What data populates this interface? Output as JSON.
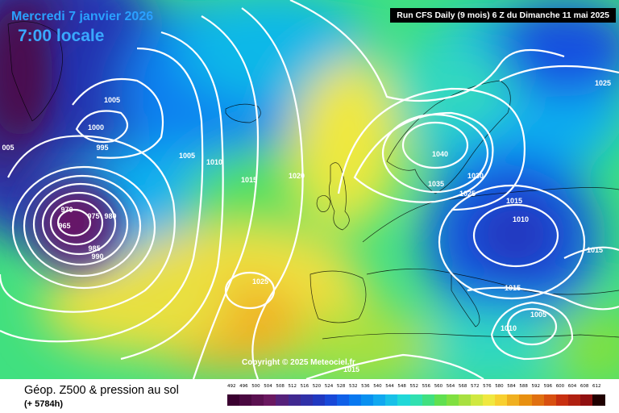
{
  "header": {
    "date_line": "Mercredi 7 janvier 2026",
    "local_time": "7:00 locale",
    "run_info": "Run CFS Daily (9 mois) 6 Z du Dimanche 11 mai 2025"
  },
  "footer": {
    "product": "Géop. Z500 & pression au sol",
    "lead_time": "(+ 5784h)",
    "copyright": "Copyright © 2025 Meteociel.fr"
  },
  "legend": {
    "ticks": [
      "492",
      "496",
      "500",
      "504",
      "508",
      "512",
      "516",
      "520",
      "524",
      "528",
      "532",
      "536",
      "540",
      "544",
      "548",
      "552",
      "556",
      "560",
      "564",
      "568",
      "572",
      "576",
      "580",
      "584",
      "588",
      "592",
      "596",
      "600",
      "604",
      "608",
      "612"
    ],
    "colors": [
      "#3a0030",
      "#4a0840",
      "#5a1050",
      "#6a1860",
      "#55207a",
      "#402890",
      "#3030a8",
      "#2038c0",
      "#1848d8",
      "#1060e8",
      "#0878f0",
      "#0890f0",
      "#10a8f0",
      "#18c0e8",
      "#20d8d8",
      "#30e0b0",
      "#40e080",
      "#60e050",
      "#80e040",
      "#a8e040",
      "#d0e840",
      "#f0e840",
      "#f8d030",
      "#f0b020",
      "#e89010",
      "#e07010",
      "#d85010",
      "#c83010",
      "#b02010",
      "#901010",
      "#200000"
    ]
  },
  "isobars": [
    {
      "label": "1005",
      "color": "#ffffff"
    },
    {
      "label": "1000",
      "color": "#ffffff"
    },
    {
      "label": "995",
      "color": "#ffffff"
    },
    {
      "label": "005",
      "color": "#ffffff"
    },
    {
      "label": "1005",
      "color": "#ffffff"
    },
    {
      "label": "1010",
      "color": "#ffffff"
    },
    {
      "label": "1015",
      "color": "#ffffff"
    },
    {
      "label": "1020",
      "color": "#ffffff"
    },
    {
      "label": "970",
      "color": "#ffffff"
    },
    {
      "label": "975",
      "color": "#ffffff"
    },
    {
      "label": "980",
      "color": "#ffffff"
    },
    {
      "label": "965",
      "color": "#ffffff"
    },
    {
      "label": "985",
      "color": "#ffffff"
    },
    {
      "label": "990",
      "color": "#ffffff"
    },
    {
      "label": "1025",
      "color": "#ffffff"
    },
    {
      "label": "1040",
      "color": "#ffffff"
    },
    {
      "label": "1035",
      "color": "#ffffff"
    },
    {
      "label": "1030",
      "color": "#ffffff"
    },
    {
      "label": "1025",
      "color": "#ffffff"
    },
    {
      "label": "1015",
      "color": "#ffffff"
    },
    {
      "label": "1010",
      "color": "#ffffff"
    },
    {
      "label": "1015",
      "color": "#ffffff"
    },
    {
      "label": "1025",
      "color": "#ffffff"
    },
    {
      "label": "1015",
      "color": "#ffffff"
    },
    {
      "label": "1005",
      "color": "#ffffff"
    },
    {
      "label": "1010",
      "color": "#ffffff"
    },
    {
      "label": "1015",
      "color": "#ffffff"
    }
  ]
}
